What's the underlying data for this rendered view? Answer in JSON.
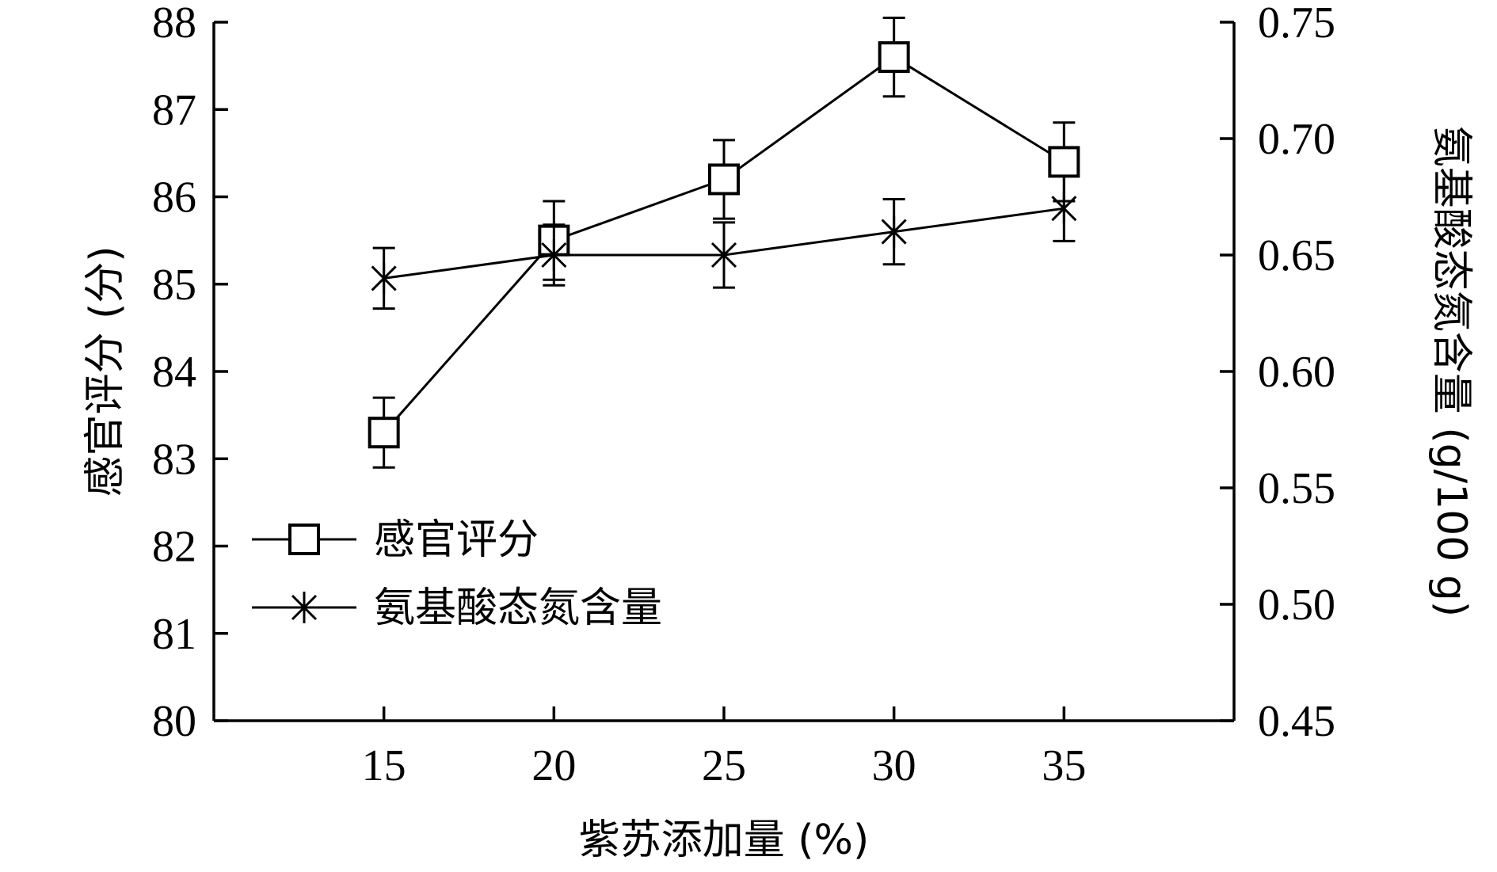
{
  "chart_data": {
    "type": "line",
    "x": [
      15,
      20,
      25,
      30,
      35
    ],
    "xlabel": "紫苏添加量 (%)",
    "ylabel_left": "感官评分 (分)",
    "ylabel_right": "氨基酸态氮含量 (g/100 g)",
    "xlim": [
      10,
      40
    ],
    "ylim_left": [
      80,
      88
    ],
    "ylim_right": [
      0.45,
      0.75
    ],
    "xticks": [
      "15",
      "20",
      "25",
      "30",
      "35"
    ],
    "yticks_left": [
      "80",
      "81",
      "82",
      "83",
      "84",
      "85",
      "86",
      "87",
      "88"
    ],
    "yticks_right": [
      "0.45",
      "0.50",
      "0.55",
      "0.60",
      "0.65",
      "0.70",
      "0.75"
    ],
    "legend_position": "lower-left",
    "grid": false,
    "series": [
      {
        "name": "感官评分",
        "axis": "left",
        "marker": "square",
        "values": [
          83.3,
          85.5,
          86.2,
          87.6,
          86.4
        ],
        "error": [
          0.4,
          0.45,
          0.45,
          0.45,
          0.45
        ]
      },
      {
        "name": "氨基酸态氮含量",
        "axis": "right",
        "marker": "asterisk",
        "values": [
          0.64,
          0.65,
          0.65,
          0.66,
          0.67
        ],
        "error": [
          0.013,
          0.013,
          0.014,
          0.014,
          0.014
        ]
      }
    ]
  }
}
